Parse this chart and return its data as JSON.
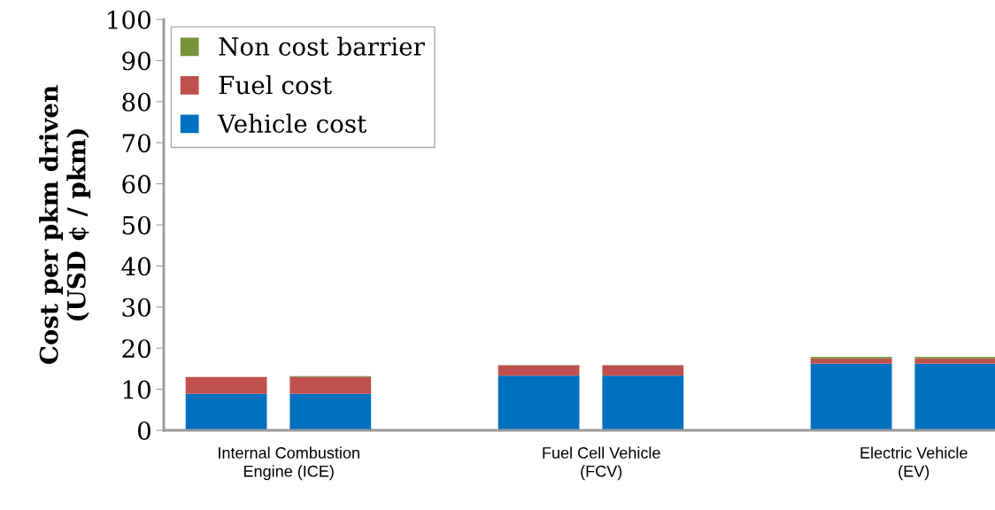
{
  "chart_data": {
    "type": "bar",
    "stacked": true,
    "ylabel": "Cost per pkm driven\n(USD ¢ / pkm)",
    "categories": [
      null,
      null,
      null,
      null,
      null,
      null,
      null,
      null
    ],
    "series": [
      {
        "name": "Vehicle cost",
        "color": "#0070c0",
        "values": [
          8.9,
          8.9,
          null,
          13.3,
          13.3,
          null,
          16.2,
          16.2
        ]
      },
      {
        "name": "Fuel cost",
        "color": "#c0504d",
        "values": [
          4.1,
          4.1,
          null,
          2.5,
          2.5,
          null,
          1.3,
          1.3
        ]
      },
      {
        "name": "Non cost barrier",
        "color": "#77933c",
        "values": [
          0,
          0.2,
          null,
          0.1,
          0.1,
          null,
          0.4,
          0.4
        ]
      }
    ],
    "annotations": [
      "Internal Combustion\nEngine (ICE)",
      "Fuel Cell Vehicle\n(FCV)",
      "Electric Vehicle\n(EV)"
    ],
    "ylim": [
      0,
      100
    ],
    "yticks": [
      0,
      10,
      20,
      30,
      40,
      50,
      60,
      70,
      80,
      90,
      100
    ],
    "legend": "top left",
    "grid": false
  }
}
